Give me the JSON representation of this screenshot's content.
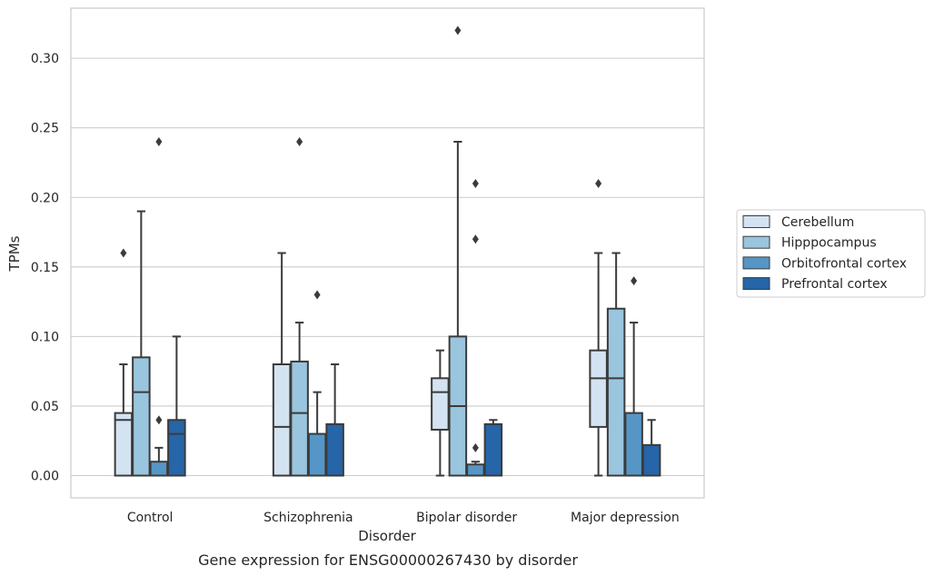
{
  "chart_data": {
    "type": "boxplot",
    "xlabel": "Disorder",
    "ylabel": "TPMs",
    "caption": "Gene expression for ENSG00000267430 by disorder",
    "ylim": [
      -0.016,
      0.336
    ],
    "yticks": [
      "0.00",
      "0.05",
      "0.10",
      "0.15",
      "0.20",
      "0.25",
      "0.30"
    ],
    "grid": true,
    "legend_position": "right",
    "categories": [
      "Control",
      "Schizophrenia",
      "Bipolar disorder",
      "Major depression"
    ],
    "series": [
      {
        "name": "Cerebellum",
        "color": "#d3e3f2",
        "boxes": [
          {
            "min": 0.0,
            "q1": 0.0,
            "median": 0.04,
            "q3": 0.045,
            "max": 0.08,
            "outliers": [
              0.16
            ]
          },
          {
            "min": 0.0,
            "q1": 0.0,
            "median": 0.035,
            "q3": 0.08,
            "max": 0.16,
            "outliers": []
          },
          {
            "min": 0.0,
            "q1": 0.033,
            "median": 0.06,
            "q3": 0.07,
            "max": 0.09,
            "outliers": []
          },
          {
            "min": 0.0,
            "q1": 0.035,
            "median": 0.07,
            "q3": 0.09,
            "max": 0.16,
            "outliers": [
              0.21
            ]
          }
        ]
      },
      {
        "name": "Hipppocampus",
        "color": "#9ac5de",
        "boxes": [
          {
            "min": 0.0,
            "q1": 0.0,
            "median": 0.06,
            "q3": 0.085,
            "max": 0.19,
            "outliers": []
          },
          {
            "min": 0.0,
            "q1": 0.0,
            "median": 0.045,
            "q3": 0.082,
            "max": 0.11,
            "outliers": [
              0.24
            ]
          },
          {
            "min": 0.0,
            "q1": 0.0,
            "median": 0.05,
            "q3": 0.1,
            "max": 0.24,
            "outliers": [
              0.32
            ]
          },
          {
            "min": 0.0,
            "q1": 0.0,
            "median": 0.07,
            "q3": 0.12,
            "max": 0.16,
            "outliers": []
          }
        ]
      },
      {
        "name": "Orbitofrontal cortex",
        "color": "#5596c6",
        "boxes": [
          {
            "min": 0.0,
            "q1": 0.0,
            "median": 0.0,
            "q3": 0.01,
            "max": 0.02,
            "outliers": [
              0.04,
              0.24
            ]
          },
          {
            "min": 0.0,
            "q1": 0.0,
            "median": 0.0,
            "q3": 0.03,
            "max": 0.06,
            "outliers": [
              0.13
            ]
          },
          {
            "min": 0.0,
            "q1": 0.0,
            "median": 0.0,
            "q3": 0.008,
            "max": 0.01,
            "outliers": [
              0.02,
              0.17,
              0.21
            ]
          },
          {
            "min": 0.0,
            "q1": 0.0,
            "median": 0.0,
            "q3": 0.045,
            "max": 0.11,
            "outliers": [
              0.14
            ]
          }
        ]
      },
      {
        "name": "Prefrontal cortex",
        "color": "#2565a8",
        "boxes": [
          {
            "min": 0.0,
            "q1": 0.0,
            "median": 0.03,
            "q3": 0.04,
            "max": 0.1,
            "outliers": []
          },
          {
            "min": 0.0,
            "q1": 0.0,
            "median": 0.0,
            "q3": 0.037,
            "max": 0.08,
            "outliers": []
          },
          {
            "min": 0.0,
            "q1": 0.0,
            "median": 0.0,
            "q3": 0.037,
            "max": 0.04,
            "outliers": []
          },
          {
            "min": 0.0,
            "q1": 0.0,
            "median": 0.0,
            "q3": 0.022,
            "max": 0.04,
            "outliers": []
          }
        ]
      }
    ]
  }
}
